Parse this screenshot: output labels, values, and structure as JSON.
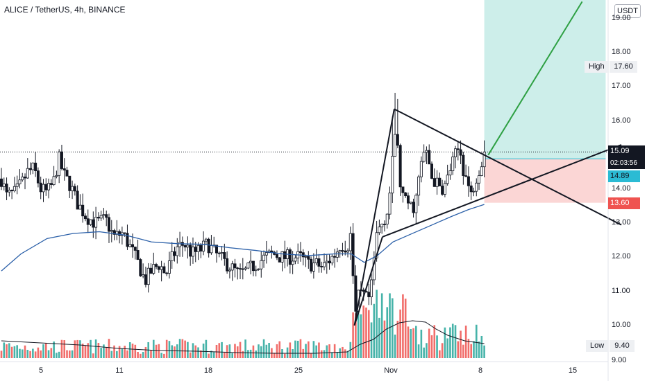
{
  "header": {
    "title": "ALICE / TetherUS, 4h, BINANCE",
    "currency": "USDT"
  },
  "price_axis": {
    "labels": [
      "18.00",
      "17.00",
      "16.00",
      "15.00",
      "14.00",
      "13.00",
      "12.00",
      "11.00",
      "10.00"
    ],
    "top_partial": "19.00",
    "bottom_partial": "9.00"
  },
  "time_axis": {
    "labels": [
      "5",
      "11",
      "18",
      "25",
      "Nov",
      "8",
      "15"
    ]
  },
  "tags": {
    "current_price": "15.09",
    "countdown": "02:03:56",
    "entry_price": "14.89",
    "stop_price": "13.60",
    "high_label": "High",
    "high_value": "17.60",
    "low_label": "Low",
    "low_value": "9.40"
  },
  "colors": {
    "up": "#26a69a",
    "down": "#ef5350",
    "ma": "#2a5fa8",
    "target_zone": "#cdeeea",
    "stop_zone": "#fbd6d5",
    "projection": "#2ea043"
  },
  "chart_data": {
    "type": "candlestick",
    "symbol": "ALICE / TetherUS",
    "interval": "4h",
    "exchange": "BINANCE",
    "ylim": [
      9.0,
      19.0
    ],
    "x_ticks": [
      "5",
      "11",
      "18",
      "25",
      "Nov",
      "8",
      "15"
    ],
    "close_path": [
      {
        "t": 0,
        "p": 14.3
      },
      {
        "t": 0.4,
        "p": 13.8
      },
      {
        "t": 1.1,
        "p": 13.9
      },
      {
        "t": 1.6,
        "p": 14.2
      },
      {
        "t": 2.0,
        "p": 14.5
      },
      {
        "t": 2.5,
        "p": 14.6
      },
      {
        "t": 3.0,
        "p": 14.0
      },
      {
        "t": 3.5,
        "p": 13.9
      },
      {
        "t": 4.0,
        "p": 14.2
      },
      {
        "t": 4.4,
        "p": 14.9
      },
      {
        "t": 4.8,
        "p": 14.4
      },
      {
        "t": 5.3,
        "p": 14.1
      },
      {
        "t": 5.8,
        "p": 13.6
      },
      {
        "t": 6.5,
        "p": 13.2
      },
      {
        "t": 7.2,
        "p": 13.0
      },
      {
        "t": 8.0,
        "p": 13.1
      },
      {
        "t": 8.6,
        "p": 12.6
      },
      {
        "t": 9.3,
        "p": 12.7
      },
      {
        "t": 10.0,
        "p": 12.2
      },
      {
        "t": 10.5,
        "p": 11.8
      },
      {
        "t": 11.0,
        "p": 11.3
      },
      {
        "t": 11.5,
        "p": 11.6
      },
      {
        "t": 12.1,
        "p": 11.8
      },
      {
        "t": 12.6,
        "p": 11.5
      },
      {
        "t": 13.0,
        "p": 11.9
      },
      {
        "t": 13.5,
        "p": 12.3
      },
      {
        "t": 14.0,
        "p": 12.4
      },
      {
        "t": 14.6,
        "p": 12.1
      },
      {
        "t": 15.2,
        "p": 12.2
      },
      {
        "t": 15.8,
        "p": 12.4
      },
      {
        "t": 16.4,
        "p": 12.1
      },
      {
        "t": 17.0,
        "p": 11.9
      },
      {
        "t": 17.6,
        "p": 11.7
      },
      {
        "t": 18.2,
        "p": 11.5
      },
      {
        "t": 18.8,
        "p": 11.6
      },
      {
        "t": 19.5,
        "p": 11.8
      },
      {
        "t": 20.2,
        "p": 12.0
      },
      {
        "t": 20.8,
        "p": 12.1
      },
      {
        "t": 21.5,
        "p": 12.0
      },
      {
        "t": 22.2,
        "p": 12.0
      },
      {
        "t": 22.9,
        "p": 12.0
      },
      {
        "t": 23.5,
        "p": 11.8
      },
      {
        "t": 24.1,
        "p": 11.8
      },
      {
        "t": 24.6,
        "p": 11.7
      },
      {
        "t": 25.1,
        "p": 11.9
      },
      {
        "t": 25.6,
        "p": 12.1
      },
      {
        "t": 26.0,
        "p": 12.4
      },
      {
        "t": 26.5,
        "p": 12.3
      },
      {
        "t": 26.85,
        "p": 12.8
      },
      {
        "t": 27.05,
        "p": 10.0
      },
      {
        "t": 27.3,
        "p": 10.8
      },
      {
        "t": 27.7,
        "p": 10.9
      },
      {
        "t": 28.1,
        "p": 10.7
      },
      {
        "t": 28.4,
        "p": 11.2
      },
      {
        "t": 28.7,
        "p": 12.6
      },
      {
        "t": 29.0,
        "p": 12.9
      },
      {
        "t": 29.3,
        "p": 13.1
      },
      {
        "t": 29.6,
        "p": 13.4
      },
      {
        "t": 29.9,
        "p": 14.3
      },
      {
        "t": 30.1,
        "p": 15.8
      },
      {
        "t": 30.35,
        "p": 15.2
      },
      {
        "t": 30.6,
        "p": 14.0
      },
      {
        "t": 30.9,
        "p": 13.6
      },
      {
        "t": 31.2,
        "p": 13.6
      },
      {
        "t": 31.5,
        "p": 13.4
      },
      {
        "t": 31.8,
        "p": 13.8
      },
      {
        "t": 32.1,
        "p": 14.6
      },
      {
        "t": 32.4,
        "p": 15.1
      },
      {
        "t": 32.7,
        "p": 14.9
      },
      {
        "t": 33.0,
        "p": 14.3
      },
      {
        "t": 33.3,
        "p": 14.2
      },
      {
        "t": 33.6,
        "p": 14.0
      },
      {
        "t": 34.0,
        "p": 14.1
      },
      {
        "t": 34.4,
        "p": 14.6
      },
      {
        "t": 34.8,
        "p": 15.0
      },
      {
        "t": 35.1,
        "p": 15.2
      },
      {
        "t": 35.4,
        "p": 14.6
      },
      {
        "t": 35.7,
        "p": 14.2
      },
      {
        "t": 36.0,
        "p": 13.8
      },
      {
        "t": 36.3,
        "p": 14.3
      },
      {
        "t": 36.7,
        "p": 14.7
      },
      {
        "t": 37.0,
        "p": 15.09
      }
    ],
    "ma_path": [
      {
        "t": 0,
        "p": 11.6
      },
      {
        "t": 1.5,
        "p": 12.1
      },
      {
        "t": 3.5,
        "p": 12.55
      },
      {
        "t": 5.5,
        "p": 12.7
      },
      {
        "t": 7.5,
        "p": 12.75
      },
      {
        "t": 9.5,
        "p": 12.65
      },
      {
        "t": 11.5,
        "p": 12.45
      },
      {
        "t": 13.5,
        "p": 12.4
      },
      {
        "t": 15.5,
        "p": 12.38
      },
      {
        "t": 17.5,
        "p": 12.28
      },
      {
        "t": 19.5,
        "p": 12.2
      },
      {
        "t": 21.5,
        "p": 12.1
      },
      {
        "t": 23.5,
        "p": 12.05
      },
      {
        "t": 25.5,
        "p": 12.1
      },
      {
        "t": 26.8,
        "p": 12.1
      },
      {
        "t": 27.8,
        "p": 11.85
      },
      {
        "t": 28.8,
        "p": 12.05
      },
      {
        "t": 30.0,
        "p": 12.45
      },
      {
        "t": 31.5,
        "p": 12.7
      },
      {
        "t": 33.0,
        "p": 12.95
      },
      {
        "t": 34.5,
        "p": 13.2
      },
      {
        "t": 35.8,
        "p": 13.4
      },
      {
        "t": 37.0,
        "p": 13.55
      }
    ],
    "volume_note": "relative volume bars with moving-average line at bottom",
    "drawings": {
      "triangle": {
        "impulse_from": {
          "t": 27.05,
          "p": 10.0
        },
        "impulse_to": {
          "t": 29.2,
          "p": 12.6
        },
        "apex_top": {
          "t": 30.1,
          "p": 16.35
        },
        "upper_line_to": {
          "t": 47.5,
          "p": 12.95
        },
        "lower_line_from": {
          "t": 29.2,
          "p": 12.6
        },
        "lower_line_to": {
          "t": 47.5,
          "p": 15.3
        }
      },
      "position": {
        "entry": 14.89,
        "stop": 13.6,
        "target_top": 19.0,
        "start_t": 37.0,
        "end_t": 46.3
      },
      "projection": {
        "from": {
          "t": 37.3,
          "p": 15.0
        },
        "to": {
          "t": 44.5,
          "p": 19.5
        }
      },
      "last_price_line": 15.09
    }
  }
}
